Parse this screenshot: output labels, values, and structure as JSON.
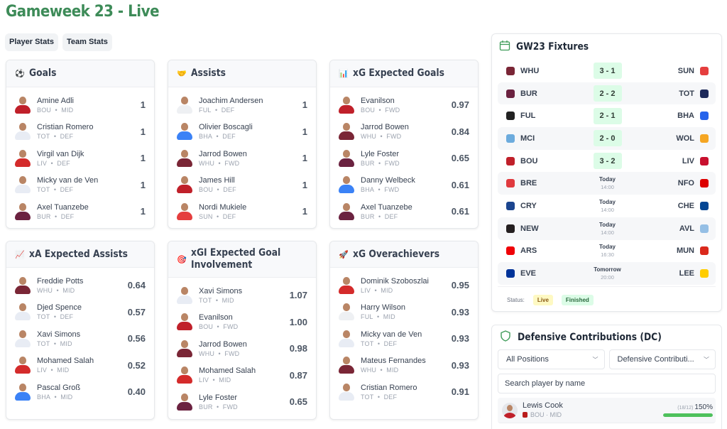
{
  "header": {
    "title": "Gameweek 23 - Live"
  },
  "tabs": [
    {
      "label": "Player Stats"
    },
    {
      "label": "Team Stats"
    }
  ],
  "cards": [
    {
      "title": "Goals",
      "icon": "soccer-ball-icon",
      "glyph": "⚽",
      "rows": [
        {
          "name": "Amine Adli",
          "team": "BOU",
          "pos": "MID",
          "value": "1",
          "kit": "#c0202a"
        },
        {
          "name": "Cristian Romero",
          "team": "TOT",
          "pos": "DEF",
          "value": "1",
          "kit": "#e8ecf4"
        },
        {
          "name": "Virgil van Dijk",
          "team": "LIV",
          "pos": "DEF",
          "value": "1",
          "kit": "#d42b2b"
        },
        {
          "name": "Micky van de Ven",
          "team": "TOT",
          "pos": "DEF",
          "value": "1",
          "kit": "#e8ecf4"
        },
        {
          "name": "Axel Tuanzebe",
          "team": "BUR",
          "pos": "DEF",
          "value": "1",
          "kit": "#6b2240"
        }
      ]
    },
    {
      "title": "Assists",
      "icon": "handshake-icon",
      "glyph": "🤝",
      "rows": [
        {
          "name": "Joachim Andersen",
          "team": "FUL",
          "pos": "DEF",
          "value": "1",
          "kit": "#eef0f3"
        },
        {
          "name": "Olivier Boscagli",
          "team": "BHA",
          "pos": "DEF",
          "value": "1",
          "kit": "#3b82f6"
        },
        {
          "name": "Jarrod Bowen",
          "team": "WHU",
          "pos": "FWD",
          "value": "1",
          "kit": "#7a2636"
        },
        {
          "name": "James Hill",
          "team": "BOU",
          "pos": "DEF",
          "value": "1",
          "kit": "#c0202a"
        },
        {
          "name": "Nordi Mukiele",
          "team": "SUN",
          "pos": "DEF",
          "value": "1",
          "kit": "#e53e3e"
        }
      ]
    },
    {
      "title": "xG Expected Goals",
      "icon": "bar-chart-icon",
      "glyph": "📊",
      "rows": [
        {
          "name": "Evanilson",
          "team": "BOU",
          "pos": "FWD",
          "value": "0.97",
          "kit": "#c0202a"
        },
        {
          "name": "Jarrod Bowen",
          "team": "WHU",
          "pos": "FWD",
          "value": "0.84",
          "kit": "#7a2636"
        },
        {
          "name": "Lyle Foster",
          "team": "BUR",
          "pos": "FWD",
          "value": "0.65",
          "kit": "#6b2240"
        },
        {
          "name": "Danny Welbeck",
          "team": "BHA",
          "pos": "FWD",
          "value": "0.61",
          "kit": "#3b82f6"
        },
        {
          "name": "Axel Tuanzebe",
          "team": "BUR",
          "pos": "DEF",
          "value": "0.61",
          "kit": "#6b2240"
        }
      ]
    },
    {
      "title": "xA Expected Assists",
      "icon": "line-chart-icon",
      "glyph": "📈",
      "rows": [
        {
          "name": "Freddie Potts",
          "team": "WHU",
          "pos": "MID",
          "value": "0.64",
          "kit": "#7a2636"
        },
        {
          "name": "Djed Spence",
          "team": "TOT",
          "pos": "DEF",
          "value": "0.57",
          "kit": "#e8ecf4"
        },
        {
          "name": "Xavi Simons",
          "team": "TOT",
          "pos": "MID",
          "value": "0.56",
          "kit": "#e8ecf4"
        },
        {
          "name": "Mohamed Salah",
          "team": "LIV",
          "pos": "MID",
          "value": "0.52",
          "kit": "#d42b2b"
        },
        {
          "name": "Pascal Groß",
          "team": "BHA",
          "pos": "MID",
          "value": "0.40",
          "kit": "#3b82f6"
        }
      ]
    },
    {
      "title": "xGI Expected Goal Involvement",
      "icon": "target-icon",
      "glyph": "🎯",
      "rows": [
        {
          "name": "Xavi Simons",
          "team": "TOT",
          "pos": "MID",
          "value": "1.07",
          "kit": "#e8ecf4"
        },
        {
          "name": "Evanilson",
          "team": "BOU",
          "pos": "FWD",
          "value": "1.00",
          "kit": "#c0202a"
        },
        {
          "name": "Jarrod Bowen",
          "team": "WHU",
          "pos": "FWD",
          "value": "0.98",
          "kit": "#7a2636"
        },
        {
          "name": "Mohamed Salah",
          "team": "LIV",
          "pos": "MID",
          "value": "0.87",
          "kit": "#d42b2b"
        },
        {
          "name": "Lyle Foster",
          "team": "BUR",
          "pos": "FWD",
          "value": "0.65",
          "kit": "#6b2240"
        }
      ]
    },
    {
      "title": "xG Overachievers",
      "icon": "rocket-icon",
      "glyph": "🚀",
      "rows": [
        {
          "name": "Dominik Szoboszlai",
          "team": "LIV",
          "pos": "MID",
          "value": "0.95",
          "kit": "#d42b2b"
        },
        {
          "name": "Harry Wilson",
          "team": "FUL",
          "pos": "MID",
          "value": "0.93",
          "kit": "#eef0f3"
        },
        {
          "name": "Micky van de Ven",
          "team": "TOT",
          "pos": "DEF",
          "value": "0.93",
          "kit": "#e8ecf4"
        },
        {
          "name": "Mateus Fernandes",
          "team": "WHU",
          "pos": "MID",
          "value": "0.93",
          "kit": "#7a2636"
        },
        {
          "name": "Cristian Romero",
          "team": "TOT",
          "pos": "DEF",
          "value": "0.91",
          "kit": "#e8ecf4"
        }
      ]
    }
  ],
  "fixtures": {
    "title": "GW23 Fixtures",
    "rows": [
      {
        "home": "WHU",
        "away": "SUN",
        "score": "3 - 1",
        "hc": "#7a2636",
        "ac": "#e53e3e"
      },
      {
        "home": "BUR",
        "away": "TOT",
        "score": "2 - 2",
        "hc": "#6b2240",
        "ac": "#1e2a5a"
      },
      {
        "home": "FUL",
        "away": "BHA",
        "score": "2 - 1",
        "hc": "#222222",
        "ac": "#2563eb"
      },
      {
        "home": "MCI",
        "away": "WOL",
        "score": "2 - 0",
        "hc": "#6cabdd",
        "ac": "#f5a623"
      },
      {
        "home": "BOU",
        "away": "LIV",
        "score": "3 - 2",
        "hc": "#c0202a",
        "ac": "#c8102e"
      },
      {
        "home": "BRE",
        "away": "NFO",
        "day": "Today",
        "time": "14:00",
        "hc": "#e03a3e",
        "ac": "#dd0000"
      },
      {
        "home": "CRY",
        "away": "CHE",
        "day": "Today",
        "time": "14:00",
        "hc": "#1b458f",
        "ac": "#034694"
      },
      {
        "home": "NEW",
        "away": "AVL",
        "day": "Today",
        "time": "14:00",
        "hc": "#241f20",
        "ac": "#95bfe5"
      },
      {
        "home": "ARS",
        "away": "MUN",
        "day": "Today",
        "time": "16:30",
        "hc": "#ef0107",
        "ac": "#da291c"
      },
      {
        "home": "EVE",
        "away": "LEE",
        "day": "Tomorrow",
        "time": "20:00",
        "hc": "#003399",
        "ac": "#ffcd00"
      }
    ],
    "status_label": "Status:",
    "live_label": "Live",
    "finished_label": "Finished"
  },
  "dc": {
    "title": "Defensive Contributions (DC)",
    "position_select": "All Positions",
    "metric_select": "Defensive Contributi...",
    "search_placeholder": "Search player by name",
    "rows": [
      {
        "name": "Lewis Cook",
        "meta": "BOU · MID",
        "ratio": "(18/12)",
        "pct": "150%",
        "fill": 100
      }
    ]
  },
  "colors": {
    "accent": "#3d8b58",
    "score_bg": "#dcfce7",
    "live_bg": "#fef9c3",
    "progress": "#4ec15c"
  }
}
